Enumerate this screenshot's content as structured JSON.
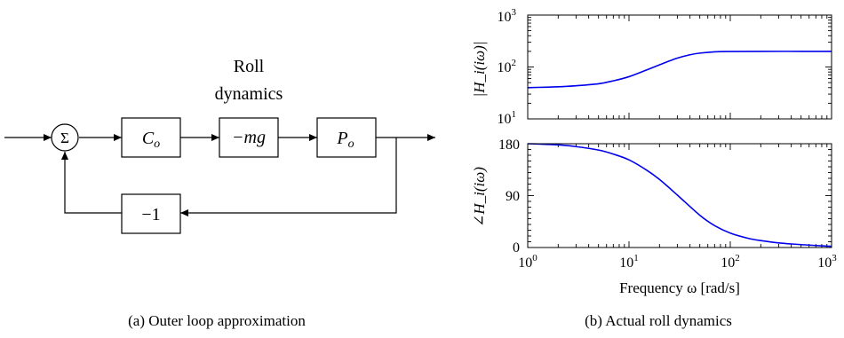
{
  "diagram": {
    "sum_symbol": "Σ",
    "roll_label_line1": "Roll",
    "roll_label_line2": "dynamics",
    "co_main": "C",
    "co_sub": "o",
    "mg_text": "−mg",
    "po_main": "P",
    "po_sub": "o",
    "neg_one": "−1",
    "caption": "(a) Outer loop approximation"
  },
  "plots": {
    "caption": "(b) Actual roll dynamics",
    "xlabel": "Frequency ω [rad/s]",
    "magnitude_ylabel": "|H_i(iω)|",
    "phase_ylabel": "∠H_i(iω)"
  },
  "chart_data": [
    {
      "type": "line",
      "panel": "magnitude",
      "xscale": "log",
      "yscale": "log",
      "xlim": [
        1,
        1000
      ],
      "ylim": [
        10,
        1000
      ],
      "ylabel": "|H_i(iω)|",
      "ytick_labels": [
        {
          "base": "10",
          "exp": "1"
        },
        {
          "base": "10",
          "exp": "2"
        },
        {
          "base": "10",
          "exp": "3"
        }
      ],
      "color": "#0000ee",
      "series": [
        {
          "x": [
            1,
            1.5,
            2,
            3,
            5,
            7,
            10,
            15,
            20,
            30,
            40,
            50,
            70,
            100,
            200,
            500,
            1000
          ],
          "y": [
            40,
            40.8,
            41.5,
            43.5,
            47.5,
            54,
            65,
            88,
            110,
            148,
            172,
            185,
            196,
            199,
            200,
            200,
            200
          ]
        }
      ]
    },
    {
      "type": "line",
      "panel": "phase",
      "xscale": "log",
      "xlim": [
        1,
        1000
      ],
      "ylim": [
        0,
        180
      ],
      "ylabel": "∠H_i(iω)",
      "yticks": [
        0,
        90,
        180
      ],
      "xtick_labels": [
        {
          "base": "10",
          "exp": "0"
        },
        {
          "base": "10",
          "exp": "1"
        },
        {
          "base": "10",
          "exp": "2"
        },
        {
          "base": "10",
          "exp": "3"
        }
      ],
      "xlabel": "Frequency ω [rad/s]",
      "color": "#0000ee",
      "series": [
        {
          "x": [
            1,
            1.5,
            2,
            3,
            5,
            7,
            10,
            15,
            20,
            30,
            50,
            70,
            100,
            150,
            200,
            300,
            500,
            1000
          ],
          "y": [
            180,
            179,
            178,
            175,
            169,
            162,
            152,
            134,
            118,
            91,
            56,
            38,
            25,
            16,
            12,
            8,
            5,
            2
          ]
        }
      ]
    }
  ]
}
